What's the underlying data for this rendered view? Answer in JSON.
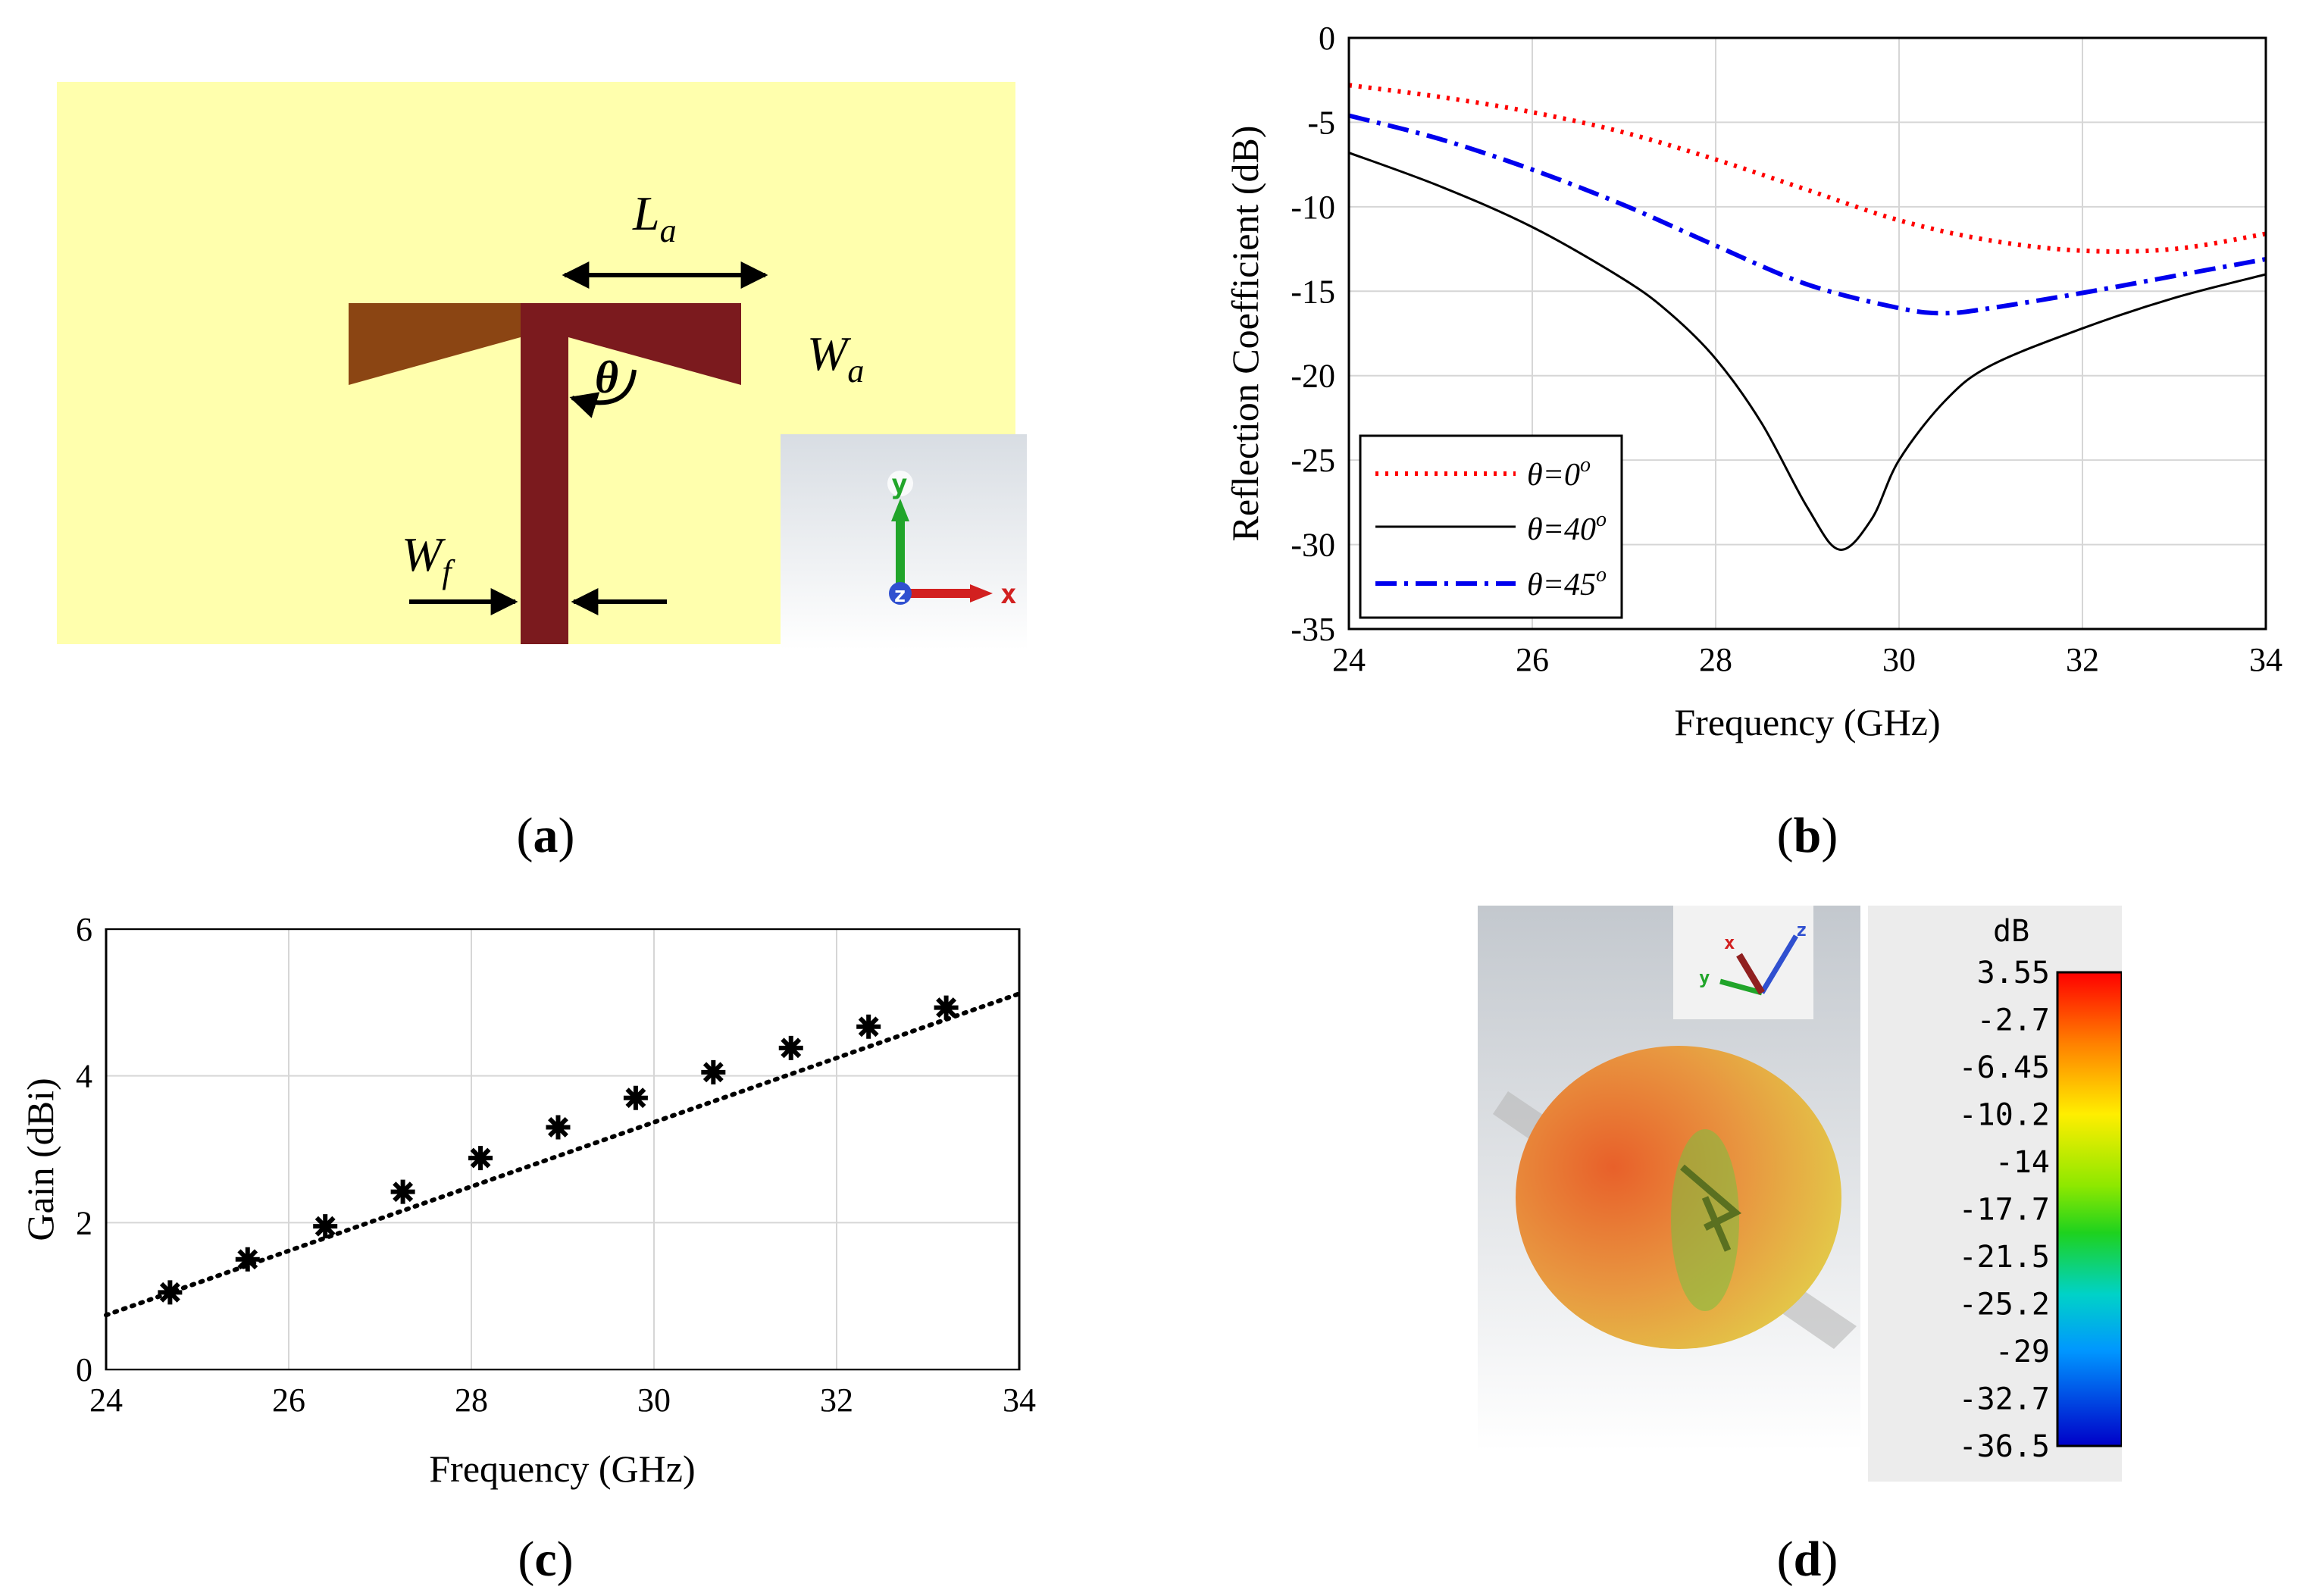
{
  "captions": {
    "a": "a",
    "b": "b",
    "c": "c",
    "d": "d"
  },
  "panel_a": {
    "labels": {
      "La_main": "L",
      "La_sub": "a",
      "Wa_main": "W",
      "Wa_sub": "a",
      "Wf_main": "W",
      "Wf_sub": "f",
      "theta": "θ"
    },
    "axes": {
      "x": "x",
      "y": "y",
      "z": "z"
    },
    "colors": {
      "substrate": "#ffffad",
      "patch_left": "#8b4513",
      "patch_right": "#7b1a1e",
      "feed": "#7b1a1e"
    }
  },
  "chart_data": [
    {
      "panel": "b",
      "type": "line",
      "xlabel": "Frequency (GHz)",
      "ylabel": "Reflection Coefficient (dB)",
      "xlim": [
        24,
        34
      ],
      "ylim": [
        -35,
        0
      ],
      "xticks": [
        "24",
        "26",
        "28",
        "30",
        "32",
        "34"
      ],
      "yticks": [
        "0",
        "-5",
        "-10",
        "-15",
        "-20",
        "-25",
        "-30",
        "-35"
      ],
      "grid": true,
      "legend": "bottom-left",
      "series": [
        {
          "name": "θ=0",
          "sup": "o",
          "style": "dotted",
          "color": "#ff0000",
          "x": [
            24,
            25,
            26,
            27,
            28,
            29,
            30,
            31,
            32,
            33,
            34
          ],
          "y": [
            -2.8,
            -3.5,
            -4.4,
            -5.6,
            -7.2,
            -9.0,
            -10.8,
            -12.0,
            -12.6,
            -12.5,
            -11.6
          ]
        },
        {
          "name": "θ=40",
          "sup": "o",
          "style": "solid",
          "color": "#000000",
          "x": [
            24,
            25,
            26,
            27,
            27.5,
            28,
            28.5,
            29,
            29.35,
            29.7,
            30,
            30.5,
            31,
            32,
            33,
            34
          ],
          "y": [
            -6.8,
            -8.8,
            -11.2,
            -14.3,
            -16.3,
            -19.0,
            -22.8,
            -27.8,
            -30.3,
            -28.5,
            -25.0,
            -21.5,
            -19.4,
            -17.2,
            -15.4,
            -14.0
          ]
        },
        {
          "name": "θ=45",
          "sup": "o",
          "style": "dashdot",
          "color": "#0000ee",
          "x": [
            24,
            25,
            26,
            27,
            28,
            29,
            30,
            30.5,
            31,
            32,
            33,
            34
          ],
          "y": [
            -4.6,
            -6.0,
            -7.8,
            -9.9,
            -12.3,
            -14.6,
            -16.0,
            -16.3,
            -16.0,
            -15.1,
            -14.1,
            -13.1
          ]
        }
      ]
    },
    {
      "panel": "c",
      "type": "scatter",
      "xlabel": "Frequency (GHz)",
      "ylabel": "Gain (dBi)",
      "xlim": [
        24,
        34
      ],
      "ylim": [
        0,
        6
      ],
      "xticks": [
        "24",
        "26",
        "28",
        "30",
        "32",
        "34"
      ],
      "yticks": [
        "0",
        "2",
        "4",
        "6"
      ],
      "grid": true,
      "points": {
        "x": [
          24.7,
          25.55,
          26.4,
          27.25,
          28.1,
          28.95,
          29.8,
          30.65,
          31.5,
          32.35,
          33.2
        ],
        "y": [
          1.05,
          1.5,
          1.95,
          2.42,
          2.88,
          3.3,
          3.7,
          4.05,
          4.38,
          4.67,
          4.93
        ]
      },
      "trend": {
        "style": "dotted",
        "x": [
          24,
          34
        ],
        "y": [
          0.74,
          5.12
        ]
      }
    }
  ],
  "panel_d": {
    "unit": "dB",
    "scale_labels": [
      "3.55",
      "-2.7",
      "-6.45",
      "-10.2",
      "-14",
      "-17.7",
      "-21.5",
      "-25.2",
      "-29",
      "-32.7",
      "-36.5"
    ],
    "axes": {
      "x": "x",
      "y": "y",
      "z": "z"
    },
    "colormap": [
      "#ff0000",
      "#ff6a00",
      "#ffb000",
      "#ffee00",
      "#b4f000",
      "#1ed21e",
      "#00c8a0",
      "#00c8ff",
      "#0078ff",
      "#0020ff",
      "#0000c8"
    ]
  }
}
